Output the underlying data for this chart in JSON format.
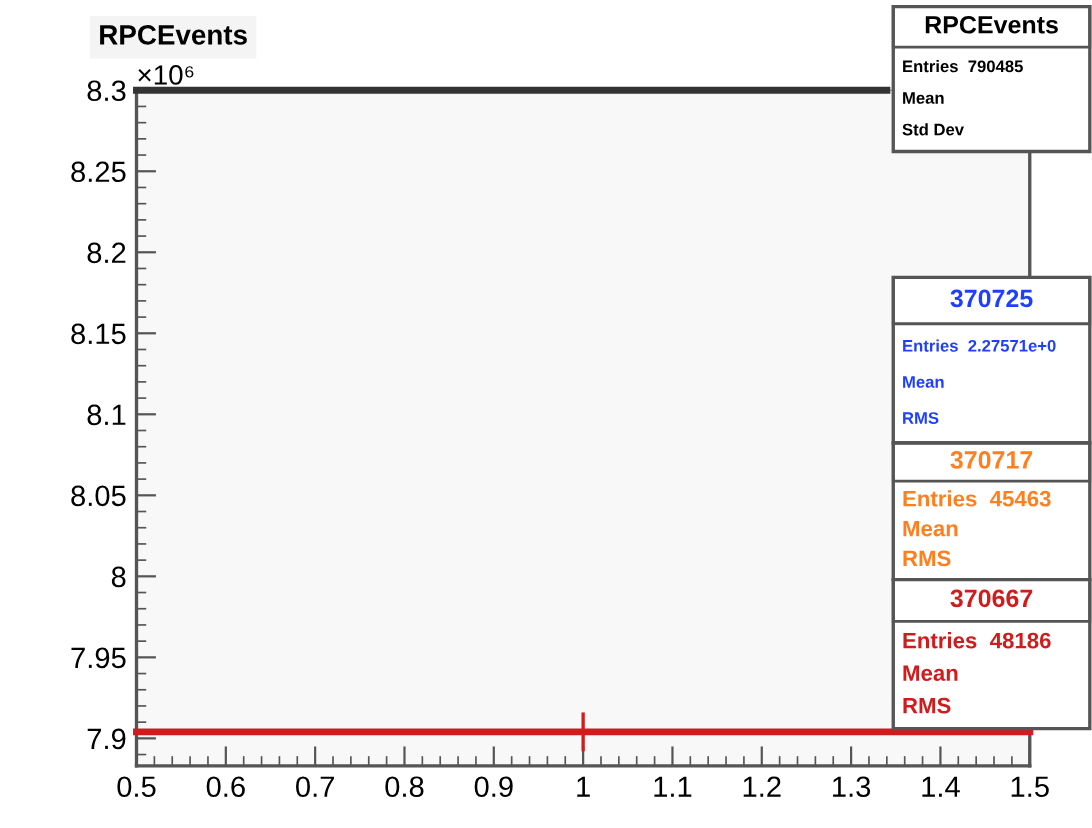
{
  "chart_data": {
    "type": "line",
    "title": "RPCEvents",
    "x": [
      0.5,
      1,
      1.34,
      1.5
    ],
    "series": [
      {
        "name": "RPCEvents",
        "color": "#333333",
        "values": [
          8.3,
          8.3,
          8.3,
          null
        ]
      },
      {
        "name": "370725",
        "color": "#1f3fff",
        "values": [
          null,
          null,
          null,
          null
        ]
      },
      {
        "name": "370717",
        "color": "#ff7f1f",
        "values": [
          null,
          null,
          null,
          null
        ]
      },
      {
        "name": "370667",
        "color": "#d01c1c",
        "values": [
          7.904,
          7.904,
          7.904,
          7.904
        ],
        "errors": [
          null,
          0.012,
          null,
          null
        ]
      }
    ],
    "xlim": [
      0.5,
      1.5
    ],
    "xticks": [
      0.5,
      0.6,
      0.7,
      0.8,
      0.9,
      1,
      1.1,
      1.2,
      1.3,
      1.4,
      1.5
    ],
    "ylim": [
      7.883,
      8.3
    ],
    "yticks": [
      7.9,
      7.95,
      8,
      8.05,
      8.1,
      8.15,
      8.2,
      8.25,
      8.3
    ],
    "annotations": [
      "×10⁶",
      "Entries  790485",
      "Mean",
      "Std Dev",
      "Entries  2.27571e+0",
      "Mean",
      "RMS",
      "Entries  45463",
      "Mean",
      "RMS",
      "Entries  48186",
      "Mean",
      "RMS"
    ],
    "marker": "none",
    "line_style": "solid",
    "legend": "top right",
    "grid": false
  }
}
